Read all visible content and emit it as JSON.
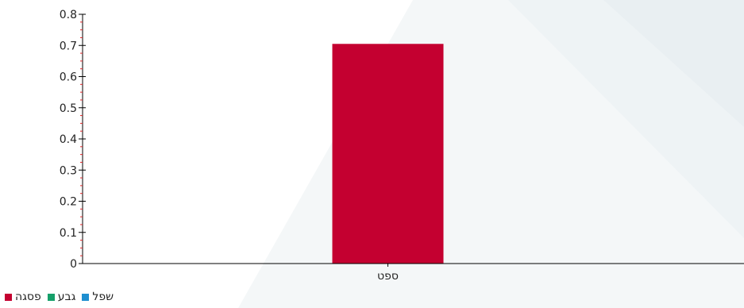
{
  "colors": {
    "axis": "#000000",
    "minor_tick": "#e0262a",
    "bar_default": "#c40030"
  },
  "chart_data": {
    "type": "bar",
    "title": "",
    "xlabel": "",
    "ylabel": "",
    "categories": [
      "ספט"
    ],
    "series": [
      {
        "name": "פסגה",
        "color": "#c40030",
        "values": [
          0.705
        ]
      }
    ],
    "ylim": [
      0,
      0.8
    ],
    "yticks": [
      "0",
      "0.1",
      "0.2",
      "0.3",
      "0.4",
      "0.5",
      "0.6",
      "0.7",
      "0.8"
    ],
    "grid": false,
    "legend_position": "bottom-left"
  },
  "legend": {
    "items": [
      {
        "label": "פסגה",
        "color": "#c40030"
      },
      {
        "label": "גבע",
        "color": "#16a06a"
      },
      {
        "label": "שפל",
        "color": "#1f8fd0"
      }
    ]
  }
}
